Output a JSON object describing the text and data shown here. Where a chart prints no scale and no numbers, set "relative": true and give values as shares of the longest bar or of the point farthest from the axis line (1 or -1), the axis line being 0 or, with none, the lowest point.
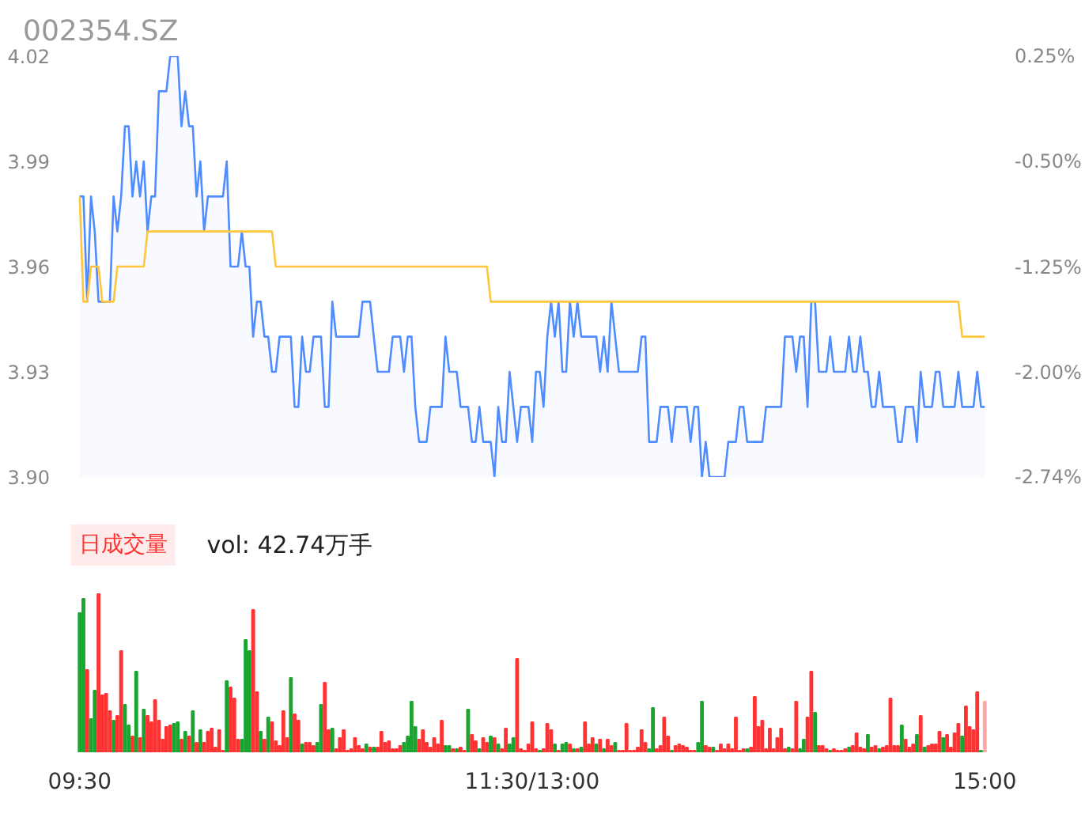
{
  "chart_data": [
    {
      "type": "line",
      "title": "002354.SZ",
      "ylim": [
        3.9,
        4.02
      ],
      "tick_labels": "y",
      "categories": [
        null,
        null,
        null,
        null,
        null,
        null,
        null,
        null,
        null,
        null,
        null,
        null,
        null,
        null,
        null,
        null,
        null,
        null,
        null,
        null,
        null,
        null,
        null,
        null,
        null,
        null,
        null,
        null,
        null,
        null,
        null,
        null,
        null,
        null,
        null,
        null,
        null,
        null,
        null,
        null,
        null,
        null,
        null,
        null,
        null,
        null,
        null,
        null,
        null,
        null,
        null,
        null,
        null,
        null,
        null,
        null,
        null,
        null,
        null,
        null,
        null,
        null,
        null,
        null,
        null,
        null,
        null,
        null,
        null,
        null,
        null,
        null,
        null,
        null,
        null,
        null,
        null,
        null,
        null,
        null,
        null,
        null,
        null,
        null,
        null,
        null,
        null,
        null,
        null,
        null,
        null,
        null,
        null,
        null,
        null,
        null,
        null,
        null,
        null,
        null,
        null,
        null,
        null,
        null,
        null,
        null,
        null,
        null,
        null,
        null,
        null,
        null,
        null,
        null,
        null,
        null,
        null,
        null,
        null,
        null,
        null,
        null,
        null,
        null,
        null,
        null,
        null,
        null,
        null,
        null,
        null,
        null,
        null,
        null,
        null,
        null,
        null,
        null,
        null,
        null,
        null,
        null,
        null,
        null,
        null,
        null,
        null,
        null,
        null,
        null,
        null,
        null,
        null,
        null,
        null,
        null,
        null,
        null,
        null,
        null,
        null,
        null,
        null,
        null,
        null,
        null,
        null,
        null,
        null,
        null,
        null,
        null,
        null,
        null,
        null,
        null,
        null,
        null,
        null,
        null,
        null,
        null,
        null,
        null,
        null,
        null,
        null,
        null,
        null,
        null,
        null,
        null,
        null,
        null,
        null,
        null,
        null,
        null,
        null,
        null,
        null,
        null,
        null,
        null,
        null,
        null,
        null,
        null,
        null,
        null,
        null,
        null,
        null,
        null,
        null,
        null,
        null,
        null,
        null,
        null,
        null,
        null,
        null,
        null,
        null,
        null,
        null,
        null,
        null,
        null,
        null,
        null,
        null,
        null,
        null,
        null,
        null,
        null,
        null,
        null,
        null
      ],
      "yticks": [
        {
          "value": 3.9,
          "label": "3.90"
        },
        {
          "value": 3.93,
          "label": "3.93"
        },
        {
          "value": 3.96,
          "label": "3.96"
        },
        {
          "value": 3.99,
          "label": "3.99"
        },
        {
          "value": 4.02,
          "label": "4.02"
        }
      ],
      "y2lim": [
        -2.74,
        0.25
      ],
      "y2ticks": [
        {
          "value": -2.74,
          "label": "-2.74%"
        },
        {
          "value": -2.0,
          "label": "-2.00%"
        },
        {
          "value": -1.25,
          "label": "-1.25%"
        },
        {
          "value": -0.5,
          "label": "-0.50%"
        },
        {
          "value": 0.25,
          "label": "0.25%"
        }
      ],
      "series": [
        {
          "type": "area",
          "color": "#4e8cff",
          "values": [
            3.98,
            3.98,
            3.95,
            3.98,
            3.97,
            3.95,
            3.95,
            3.95,
            3.95,
            3.98,
            3.97,
            3.98,
            4.0,
            4.0,
            3.98,
            3.99,
            3.98,
            3.99,
            3.97,
            3.98,
            3.98,
            4.01,
            4.01,
            4.01,
            4.02,
            4.02,
            4.02,
            4.0,
            4.01,
            4.0,
            4.0,
            3.98,
            3.99,
            3.97,
            3.98,
            3.98,
            3.98,
            3.98,
            3.98,
            3.99,
            3.96,
            3.96,
            3.96,
            3.97,
            3.96,
            3.96,
            3.94,
            3.95,
            3.95,
            3.94,
            3.94,
            3.93,
            3.93,
            3.94,
            3.94,
            3.94,
            3.94,
            3.92,
            3.92,
            3.94,
            3.93,
            3.93,
            3.94,
            3.94,
            3.94,
            3.92,
            3.92,
            3.95,
            3.94,
            3.94,
            3.94,
            3.94,
            3.94,
            3.94,
            3.94,
            3.95,
            3.95,
            3.95,
            3.94,
            3.93,
            3.93,
            3.93,
            3.93,
            3.94,
            3.94,
            3.94,
            3.93,
            3.94,
            3.94,
            3.92,
            3.91,
            3.91,
            3.91,
            3.92,
            3.92,
            3.92,
            3.92,
            3.94,
            3.93,
            3.93,
            3.93,
            3.92,
            3.92,
            3.92,
            3.91,
            3.91,
            3.92,
            3.91,
            3.91,
            3.91,
            3.9,
            3.92,
            3.91,
            3.91,
            3.93,
            3.92,
            3.91,
            3.92,
            3.92,
            3.92,
            3.91,
            3.93,
            3.93,
            3.92,
            3.94,
            3.95,
            3.94,
            3.95,
            3.93,
            3.93,
            3.95,
            3.94,
            3.95,
            3.94,
            3.94,
            3.94,
            3.94,
            3.94,
            3.93,
            3.94,
            3.93,
            3.95,
            3.94,
            3.93,
            3.93,
            3.93,
            3.93,
            3.93,
            3.93,
            3.94,
            3.94,
            3.91,
            3.91,
            3.91,
            3.92,
            3.92,
            3.92,
            3.91,
            3.92,
            3.92,
            3.92,
            3.92,
            3.91,
            3.92,
            3.92,
            3.9,
            3.91,
            3.9,
            3.9,
            3.9,
            3.9,
            3.9,
            3.91,
            3.91,
            3.91,
            3.92,
            3.92,
            3.91,
            3.91,
            3.91,
            3.91,
            3.91,
            3.92,
            3.92,
            3.92,
            3.92,
            3.92,
            3.94,
            3.94,
            3.94,
            3.93,
            3.94,
            3.94,
            3.92,
            3.95,
            3.95,
            3.93,
            3.93,
            3.93,
            3.94,
            3.93,
            3.93,
            3.93,
            3.93,
            3.94,
            3.93,
            3.93,
            3.94,
            3.93,
            3.93,
            3.92,
            3.92,
            3.93,
            3.92,
            3.92,
            3.92,
            3.92,
            3.91,
            3.91,
            3.92,
            3.92,
            3.92,
            3.91,
            3.93,
            3.92,
            3.92,
            3.92,
            3.93,
            3.93,
            3.92,
            3.92,
            3.92,
            3.92,
            3.93,
            3.92,
            3.92,
            3.92,
            3.92,
            3.93,
            3.92,
            3.92
          ]
        },
        {
          "type": "line",
          "color": "#ffc53d",
          "values": [
            3.98,
            3.95,
            3.95,
            3.96,
            3.96,
            3.96,
            3.95,
            3.95,
            3.95,
            3.95,
            3.96,
            3.96,
            3.96,
            3.96,
            3.96,
            3.96,
            3.96,
            3.96,
            3.97,
            3.97,
            3.97,
            3.97,
            3.97,
            3.97,
            3.97,
            3.97,
            3.97,
            3.97,
            3.97,
            3.97,
            3.97,
            3.97,
            3.97,
            3.97,
            3.97,
            3.97,
            3.97,
            3.97,
            3.97,
            3.97,
            3.97,
            3.97,
            3.97,
            3.97,
            3.97,
            3.97,
            3.97,
            3.97,
            3.97,
            3.97,
            3.97,
            3.97,
            3.96,
            3.96,
            3.96,
            3.96,
            3.96,
            3.96,
            3.96,
            3.96,
            3.96,
            3.96,
            3.96,
            3.96,
            3.96,
            3.96,
            3.96,
            3.96,
            3.96,
            3.96,
            3.96,
            3.96,
            3.96,
            3.96,
            3.96,
            3.96,
            3.96,
            3.96,
            3.96,
            3.96,
            3.96,
            3.96,
            3.96,
            3.96,
            3.96,
            3.96,
            3.96,
            3.96,
            3.96,
            3.96,
            3.96,
            3.96,
            3.96,
            3.96,
            3.96,
            3.96,
            3.96,
            3.96,
            3.96,
            3.96,
            3.96,
            3.96,
            3.96,
            3.96,
            3.96,
            3.96,
            3.96,
            3.96,
            3.96,
            3.95,
            3.95,
            3.95,
            3.95,
            3.95,
            3.95,
            3.95,
            3.95,
            3.95,
            3.95,
            3.95,
            3.95,
            3.95,
            3.95,
            3.95,
            3.95,
            3.95,
            3.95,
            3.95,
            3.95,
            3.95,
            3.95,
            3.95,
            3.95,
            3.95,
            3.95,
            3.95,
            3.95,
            3.95,
            3.95,
            3.95,
            3.95,
            3.95,
            3.95,
            3.95,
            3.95,
            3.95,
            3.95,
            3.95,
            3.95,
            3.95,
            3.95,
            3.95,
            3.95,
            3.95,
            3.95,
            3.95,
            3.95,
            3.95,
            3.95,
            3.95,
            3.95,
            3.95,
            3.95,
            3.95,
            3.95,
            3.95,
            3.95,
            3.95,
            3.95,
            3.95,
            3.95,
            3.95,
            3.95,
            3.95,
            3.95,
            3.95,
            3.95,
            3.95,
            3.95,
            3.95,
            3.95,
            3.95,
            3.95,
            3.95,
            3.95,
            3.95,
            3.95,
            3.95,
            3.95,
            3.95,
            3.95,
            3.95,
            3.95,
            3.95,
            3.95,
            3.95,
            3.95,
            3.95,
            3.95,
            3.95,
            3.95,
            3.95,
            3.95,
            3.95,
            3.95,
            3.95,
            3.95,
            3.95,
            3.95,
            3.95,
            3.95,
            3.95,
            3.95,
            3.95,
            3.95,
            3.95,
            3.95,
            3.95,
            3.95,
            3.95,
            3.95,
            3.95,
            3.95,
            3.95,
            3.95,
            3.95,
            3.95,
            3.95,
            3.95,
            3.95,
            3.95,
            3.95,
            3.95,
            3.95,
            3.94,
            3.94,
            3.94,
            3.94,
            3.94,
            3.94,
            3.94
          ]
        }
      ]
    },
    {
      "type": "bar",
      "relative": true,
      "tick_labels": "x",
      "annotations": [
        "日成交量",
        "vol: 42.74万手"
      ],
      "categories": [
        "09:30",
        null,
        null,
        null,
        null,
        null,
        null,
        null,
        null,
        null,
        null,
        null,
        null,
        null,
        null,
        null,
        null,
        null,
        null,
        null,
        null,
        null,
        null,
        null,
        null,
        null,
        null,
        null,
        null,
        null,
        null,
        null,
        null,
        null,
        null,
        null,
        null,
        null,
        null,
        null,
        null,
        null,
        null,
        null,
        null,
        null,
        null,
        null,
        null,
        null,
        null,
        null,
        null,
        null,
        null,
        null,
        null,
        null,
        null,
        null,
        null,
        null,
        null,
        null,
        null,
        null,
        null,
        null,
        null,
        null,
        null,
        null,
        null,
        null,
        null,
        null,
        null,
        null,
        null,
        null,
        null,
        null,
        null,
        null,
        null,
        null,
        null,
        null,
        null,
        null,
        null,
        null,
        null,
        null,
        null,
        null,
        null,
        null,
        null,
        null,
        null,
        null,
        null,
        null,
        null,
        null,
        null,
        null,
        null,
        null,
        null,
        null,
        null,
        null,
        null,
        null,
        null,
        null,
        null,
        null,
        "11:30/13:00",
        null,
        null,
        null,
        null,
        null,
        null,
        null,
        null,
        null,
        null,
        null,
        null,
        null,
        null,
        null,
        null,
        null,
        null,
        null,
        null,
        null,
        null,
        null,
        null,
        null,
        null,
        null,
        null,
        null,
        null,
        null,
        null,
        null,
        null,
        null,
        null,
        null,
        null,
        null,
        null,
        null,
        null,
        null,
        null,
        null,
        null,
        null,
        null,
        null,
        null,
        null,
        null,
        null,
        null,
        null,
        null,
        null,
        null,
        null,
        null,
        null,
        null,
        null,
        null,
        null,
        null,
        null,
        null,
        null,
        null,
        null,
        null,
        null,
        null,
        null,
        null,
        null,
        null,
        null,
        null,
        null,
        null,
        null,
        null,
        null,
        null,
        null,
        null,
        null,
        null,
        null,
        null,
        null,
        null,
        null,
        null,
        null,
        null,
        null,
        null,
        null,
        null,
        null,
        null,
        null,
        null,
        null,
        null,
        null,
        null,
        null,
        null,
        null,
        null,
        null,
        null,
        null,
        null,
        null,
        "15:00"
      ],
      "values": [
        0.88,
        0.97,
        0.52,
        0.21,
        0.39,
        1,
        0.36,
        0.37,
        0.26,
        0.2,
        0.23,
        0.64,
        0.3,
        0.17,
        0.1,
        0.51,
        0.09,
        0.27,
        0.23,
        0.19,
        0.33,
        0.2,
        0.08,
        0.16,
        0.17,
        0.18,
        0.19,
        0.08,
        0.13,
        0.1,
        0.26,
        0.06,
        0.14,
        0.06,
        0.13,
        0.15,
        0.03,
        0.14,
        0.01,
        0.45,
        0.41,
        0.34,
        0.08,
        0.08,
        0.71,
        0.64,
        0.9,
        0.38,
        0.13,
        0.08,
        0.22,
        0.19,
        0.07,
        0.04,
        0.26,
        0.09,
        0.47,
        0.24,
        0.2,
        0.05,
        0.06,
        0.06,
        0.04,
        0.06,
        0.3,
        0.44,
        0.14,
        0.15,
        0.02,
        0.09,
        0.14,
        0.01,
        0.02,
        0.09,
        0.04,
        0.02,
        0.05,
        0.03,
        0.03,
        0.03,
        0.13,
        0.06,
        0.07,
        0.02,
        0.02,
        0.04,
        0.06,
        0.1,
        0.32,
        0.16,
        0.08,
        0.14,
        0.06,
        0.03,
        0.09,
        0.05,
        0.2,
        0.04,
        0.04,
        0.02,
        0.02,
        0.03,
        0.01,
        0.27,
        0.11,
        0.07,
        0.02,
        0.09,
        0.06,
        0.1,
        0.09,
        0.05,
        0.02,
        0.15,
        0.05,
        0.09,
        0.59,
        0.02,
        0.01,
        0.05,
        0.19,
        0.02,
        0.01,
        0.02,
        0.18,
        0.14,
        0.05,
        0.01,
        0.05,
        0.06,
        0.05,
        0.02,
        0.02,
        0.03,
        0.19,
        0.05,
        0.09,
        0.05,
        0.08,
        0.02,
        0.08,
        0.04,
        0.06,
        0.01,
        0.01,
        0.18,
        0.01,
        0.01,
        0.03,
        0.14,
        0.06,
        0.02,
        0.28,
        0.02,
        0.04,
        0.22,
        0.1,
        0.01,
        0.04,
        0.05,
        0.04,
        0.03,
        0.01,
        0.01,
        0.06,
        0.32,
        0.04,
        0.03,
        0.03,
        0.01,
        0.05,
        0.02,
        0.05,
        0.02,
        0.22,
        0.01,
        0.02,
        0.02,
        0.03,
        0.35,
        0.16,
        0.2,
        0.02,
        0.15,
        0.02,
        0.09,
        0.15,
        0.02,
        0.03,
        0.02,
        0.32,
        0.02,
        0.08,
        0.22,
        0.51,
        0.25,
        0.04,
        0.04,
        0.02,
        0.01,
        0.02,
        0.01,
        0.01,
        0.02,
        0.03,
        0.04,
        0.12,
        0.03,
        0.02,
        0.11,
        0.03,
        0.04,
        0.02,
        0.03,
        0.04,
        0.34,
        0.04,
        0.04,
        0.17,
        0.08,
        0.03,
        0.05,
        0.11,
        0.23,
        0.03,
        0.04,
        0.05,
        0.05,
        0.13,
        0.09,
        0.11,
        0.03,
        0.12,
        0.18,
        0.1,
        0.29,
        0.16,
        0.14,
        0.38,
        0.01,
        0.32
      ],
      "colors": [
        "#1aa531",
        "#1aa531",
        "#ff3333",
        "#1aa531",
        "#1aa531",
        "#ff3333",
        "#ff3333",
        "#ff3333",
        "#ff3333",
        "#1aa531",
        "#ff3333",
        "#ff3333",
        "#1aa531",
        "#1aa531",
        "#ff3333",
        "#1aa531",
        "#ff3333",
        "#1aa531",
        "#ff3333",
        "#ff3333",
        "#ff3333",
        "#ff3333",
        "#ff3333",
        "#ff3333",
        "#ff3333",
        "#1aa531",
        "#1aa531",
        "#ff3333",
        "#1aa531",
        "#ff3333",
        "#1aa531",
        "#ff3333",
        "#1aa531",
        "#ff3333",
        "#ff3333",
        "#ff3333",
        "#ff3333",
        "#ff3333",
        "#ff3333",
        "#1aa531",
        "#ff3333",
        "#ff3333",
        "#ff3333",
        "#1aa531",
        "#1aa531",
        "#1aa531",
        "#ff3333",
        "#ff3333",
        "#1aa531",
        "#ff3333",
        "#1aa531",
        "#ff3333",
        "#ff3333",
        "#ff3333",
        "#ff3333",
        "#ff3333",
        "#1aa531",
        "#ff3333",
        "#ff3333",
        "#1aa531",
        "#ff3333",
        "#ff3333",
        "#ff3333",
        "#1aa531",
        "#1aa531",
        "#ff3333",
        "#ff3333",
        "#1aa531",
        "#ff3333",
        "#ff3333",
        "#ff3333",
        "#ff3333",
        "#ff3333",
        "#ff3333",
        "#ff3333",
        "#ff3333",
        "#1aa531",
        "#ff3333",
        "#1aa531",
        "#ff3333",
        "#ff3333",
        "#ff3333",
        "#ff3333",
        "#ff3333",
        "#ff3333",
        "#ff3333",
        "#1aa531",
        "#1aa531",
        "#1aa531",
        "#1aa531",
        "#ff3333",
        "#ff3333",
        "#ff3333",
        "#ff3333",
        "#ff3333",
        "#ff3333",
        "#ff3333",
        "#1aa531",
        "#1aa531",
        "#ff3333",
        "#1aa531",
        "#ff3333",
        "#ff3333",
        "#1aa531",
        "#ff3333",
        "#ff3333",
        "#1aa531",
        "#ff3333",
        "#ff3333",
        "#1aa531",
        "#ff3333",
        "#1aa531",
        "#ff3333",
        "#ff3333",
        "#1aa531",
        "#1aa531",
        "#ff3333",
        "#ff3333",
        "#ff3333",
        "#ff3333",
        "#ff3333",
        "#ff3333",
        "#1aa531",
        "#ff3333",
        "#ff3333",
        "#ff3333",
        "#1aa531",
        "#ff3333",
        "#1aa531",
        "#1aa531",
        "#ff3333",
        "#1aa531",
        "#ff3333",
        "#1aa531",
        "#ff3333",
        "#ff3333",
        "#ff3333",
        "#1aa531",
        "#ff3333",
        "#1aa531",
        "#ff3333",
        "#ff3333",
        "#1aa531",
        "#ff3333",
        "#ff3333",
        "#ff3333",
        "#ff3333",
        "#ff3333",
        "#ff3333",
        "#ff3333",
        "#ff3333",
        "#1aa531",
        "#1aa531",
        "#ff3333",
        "#ff3333",
        "#ff3333",
        "#ff3333",
        "#1aa531",
        "#ff3333",
        "#ff3333",
        "#ff3333",
        "#ff3333",
        "#ff3333",
        "#ff3333",
        "#1aa531",
        "#1aa531",
        "#ff3333",
        "#ff3333",
        "#1aa531",
        "#ff3333",
        "#ff3333",
        "#ff3333",
        "#ff3333",
        "#ff3333",
        "#ff3333",
        "#ff3333",
        "#ff3333",
        "#1aa531",
        "#ff3333",
        "#ff3333",
        "#ff3333",
        "#ff3333",
        "#ff3333",
        "#ff3333",
        "#ff3333",
        "#ff3333",
        "#ff3333",
        "#ff3333",
        "#1aa531",
        "#ff3333",
        "#ff3333",
        "#1aa531",
        "#1aa531",
        "#ff3333",
        "#ff3333",
        "#1aa531",
        "#ff3333",
        "#ff3333",
        "#ff3333",
        "#1aa531",
        "#ff3333",
        "#ff3333",
        "#ff3333",
        "#ff3333",
        "#1aa531",
        "#ff3333",
        "#ff3333",
        "#ff3333",
        "#ff3333",
        "#1aa531",
        "#ff3333",
        "#ff3333",
        "#1aa531",
        "#ff3333",
        "#ff3333",
        "#ff3333",
        "#ff3333",
        "#ff3333",
        "#1aa531",
        "#ff3333",
        "#ff3333",
        "#ff3333",
        "#1aa531",
        "#ff3333",
        "#1aa531",
        "#ff3333",
        "#ff3333",
        "#ff3333",
        "#ff3333",
        "#1aa531",
        "#ff3333",
        "#ff3333",
        "#ff3333",
        "#ff3333",
        "#1aa531",
        "#ff3333",
        "#ff3333",
        "#ff3333",
        "#ff3333",
        "#1aa531",
        "#ffa8a8"
      ]
    }
  ]
}
